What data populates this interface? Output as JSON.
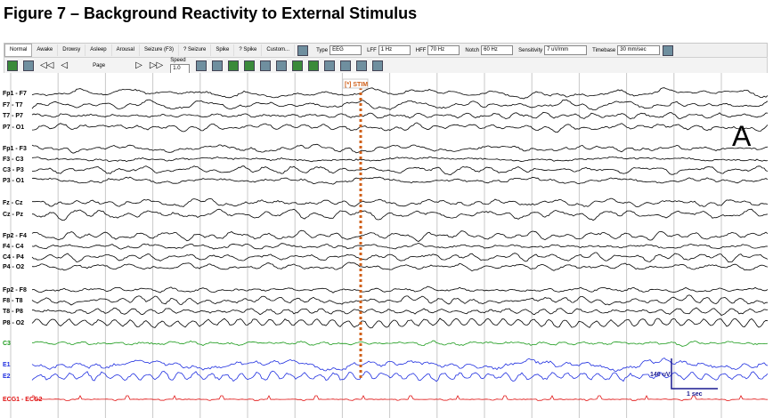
{
  "title": "Figure 7 – Background Reactivity to External Stimulus",
  "toolbar": {
    "buttons": [
      "Normal",
      "Awake",
      "Drowsy",
      "Asleep",
      "Arousal",
      "Seizure (F3)",
      "? Seizure",
      "Spike",
      "? Spike",
      "Custom..."
    ],
    "settings": [
      {
        "label": "Type",
        "value": "EEG"
      },
      {
        "label": "LFF",
        "value": "1 Hz"
      },
      {
        "label": "HFF",
        "value": "70 Hz"
      },
      {
        "label": "Notch",
        "value": "60 Hz"
      },
      {
        "label": "Sensitivity",
        "value": "7 uV/mm"
      },
      {
        "label": "Timebase",
        "value": "30 mm/sec"
      }
    ],
    "page": "Page",
    "speed_label": "Speed",
    "speed": "1.0"
  },
  "channels": [
    {
      "label": "Fp1 - F7",
      "color": "#000000"
    },
    {
      "label": "F7 - T7",
      "color": "#000000"
    },
    {
      "label": "T7 - P7",
      "color": "#000000"
    },
    {
      "label": "P7 - O1",
      "color": "#000000"
    },
    {
      "label": "Fp1 - F3",
      "color": "#000000"
    },
    {
      "label": "F3 - C3",
      "color": "#000000"
    },
    {
      "label": "C3 - P3",
      "color": "#000000"
    },
    {
      "label": "P3 - O1",
      "color": "#000000"
    },
    {
      "label": "Fz - Cz",
      "color": "#000000"
    },
    {
      "label": "Cz - Pz",
      "color": "#000000"
    },
    {
      "label": "Fp2 - F4",
      "color": "#000000"
    },
    {
      "label": "F4 - C4",
      "color": "#000000"
    },
    {
      "label": "C4 - P4",
      "color": "#000000"
    },
    {
      "label": "P4 - O2",
      "color": "#000000"
    },
    {
      "label": "Fp2 - F8",
      "color": "#000000"
    },
    {
      "label": "F8 - T8",
      "color": "#000000"
    },
    {
      "label": "T8 - P8",
      "color": "#000000"
    },
    {
      "label": "P8 - O2",
      "color": "#000000"
    },
    {
      "label": "C3",
      "color": "#1a9a1a"
    },
    {
      "label": "E1",
      "color": "#1f2fe0"
    },
    {
      "label": "E2",
      "color": "#1f2fe0"
    },
    {
      "label": "ECG1 - ECG2",
      "color": "#e01010"
    }
  ],
  "stim_label": "[*] STIM",
  "panel_label": "A",
  "scale": {
    "amplitude": "140 uV",
    "time": "1 sec"
  }
}
